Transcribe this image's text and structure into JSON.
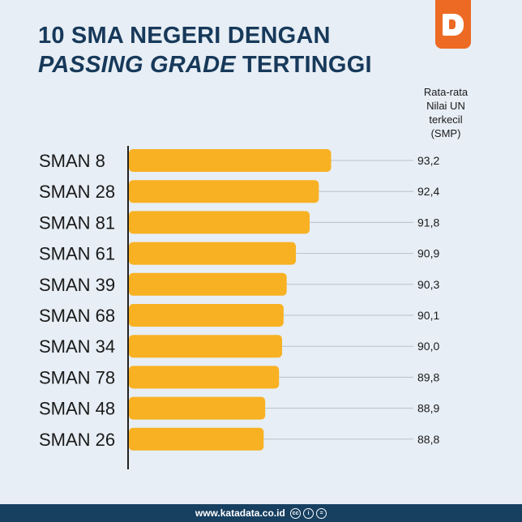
{
  "title": {
    "line1": "10 SMA NEGERI DENGAN",
    "line2_italic": "PASSING GRADE",
    "line2_rest": " TERTINGGI"
  },
  "logo": {
    "letter": "D",
    "color": "#ec6a24"
  },
  "footer": {
    "url": "www.katadata.co.id",
    "icons": [
      "cc-icon",
      "by-icon",
      "nd-icon"
    ]
  },
  "chart_data": {
    "type": "bar",
    "orientation": "horizontal",
    "title": "10 SMA NEGERI DENGAN PASSING GRADE TERTINGGI",
    "value_header": [
      "Rata-rata",
      "Nilai UN terkecil",
      "(SMP)"
    ],
    "categories": [
      "SMAN 8",
      "SMAN 28",
      "SMAN 81",
      "SMAN 61",
      "SMAN 39",
      "SMAN 68",
      "SMAN 34",
      "SMAN 78",
      "SMAN 48",
      "SMAN 26"
    ],
    "values": [
      93.2,
      92.4,
      91.8,
      90.9,
      90.3,
      90.1,
      90.0,
      89.8,
      88.9,
      88.8
    ],
    "value_labels": [
      "93,2",
      "92,4",
      "91,8",
      "90,9",
      "90,3",
      "90,1",
      "90,0",
      "89,8",
      "88,9",
      "88,8"
    ],
    "xlim": [
      80,
      100
    ],
    "bar_color": "#f8b123"
  }
}
